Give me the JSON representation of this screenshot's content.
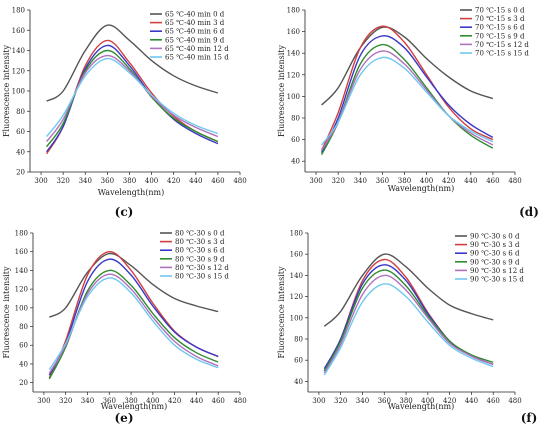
{
  "chart_data": [
    {
      "type": "line",
      "panel_label": "(c)",
      "xlabel": "Wavelength(nm)",
      "ylabel": "Fluorescence intensity",
      "xlim": [
        290,
        480
      ],
      "ylim": [
        20,
        180
      ],
      "xticks": [
        300,
        320,
        340,
        360,
        380,
        400,
        420,
        440,
        460,
        480
      ],
      "yticks": [
        20,
        40,
        60,
        80,
        100,
        120,
        140,
        160,
        180
      ],
      "legend_position": "top-right",
      "series": [
        {
          "name": "65 ℃-40 min 0 d",
          "color": "#555555",
          "x": [
            305,
            320,
            340,
            360,
            380,
            400,
            420,
            440,
            460
          ],
          "y": [
            90,
            100,
            140,
            165,
            150,
            130,
            115,
            105,
            98
          ]
        },
        {
          "name": "65 ℃-40 min 3 d",
          "color": "#d04040",
          "x": [
            305,
            320,
            340,
            360,
            380,
            400,
            420,
            440,
            460
          ],
          "y": [
            38,
            65,
            125,
            150,
            128,
            98,
            75,
            60,
            50
          ]
        },
        {
          "name": "65 ℃-40 min 6 d",
          "color": "#3838c8",
          "x": [
            305,
            320,
            340,
            360,
            380,
            400,
            420,
            440,
            460
          ],
          "y": [
            40,
            65,
            122,
            145,
            125,
            95,
            72,
            58,
            48
          ]
        },
        {
          "name": "65 ℃-40 min 9 d",
          "color": "#2e8b2e",
          "x": [
            305,
            320,
            340,
            360,
            380,
            400,
            420,
            440,
            460
          ],
          "y": [
            45,
            68,
            120,
            140,
            122,
            94,
            73,
            60,
            50
          ]
        },
        {
          "name": "65 ℃-40 min 12 d",
          "color": "#b070c0",
          "x": [
            305,
            320,
            340,
            360,
            380,
            400,
            420,
            440,
            460
          ],
          "y": [
            50,
            72,
            118,
            135,
            120,
            95,
            76,
            64,
            55
          ]
        },
        {
          "name": "65 ℃-40 min 15 d",
          "color": "#70c8f0",
          "x": [
            305,
            320,
            340,
            360,
            380,
            400,
            420,
            440,
            460
          ],
          "y": [
            55,
            76,
            115,
            132,
            118,
            96,
            78,
            66,
            58
          ]
        }
      ]
    },
    {
      "type": "line",
      "panel_label": "(d)",
      "xlabel": "Wavelength(nm)",
      "ylabel": "Fluorescence intensity",
      "xlim": [
        290,
        480
      ],
      "ylim": [
        30,
        180
      ],
      "xticks": [
        300,
        320,
        340,
        360,
        380,
        400,
        420,
        440,
        460,
        480
      ],
      "yticks": [
        40,
        60,
        80,
        100,
        120,
        140,
        160,
        180
      ],
      "legend_position": "top-right",
      "series": [
        {
          "name": "70 ℃-15 s 0 d",
          "color": "#555555",
          "x": [
            305,
            320,
            340,
            360,
            380,
            400,
            420,
            440,
            460
          ],
          "y": [
            92,
            108,
            145,
            164,
            155,
            135,
            118,
            105,
            98
          ]
        },
        {
          "name": "70 ℃-15 s 3 d",
          "color": "#d04040",
          "x": [
            305,
            320,
            340,
            360,
            380,
            400,
            420,
            440,
            460
          ],
          "y": [
            50,
            85,
            145,
            165,
            150,
            120,
            90,
            70,
            60
          ]
        },
        {
          "name": "70 ℃-15 s 6 d",
          "color": "#3838c8",
          "x": [
            305,
            320,
            340,
            360,
            380,
            400,
            420,
            440,
            460
          ],
          "y": [
            48,
            80,
            138,
            156,
            145,
            118,
            92,
            74,
            62
          ]
        },
        {
          "name": "70 ℃-15 s 9 d",
          "color": "#2e8b2e",
          "x": [
            305,
            320,
            340,
            360,
            380,
            400,
            420,
            440,
            460
          ],
          "y": [
            46,
            76,
            130,
            148,
            134,
            108,
            82,
            64,
            52
          ]
        },
        {
          "name": "70 ℃-15 s 12 d",
          "color": "#b070c0",
          "x": [
            305,
            320,
            340,
            360,
            380,
            400,
            420,
            440,
            460
          ],
          "y": [
            50,
            76,
            125,
            142,
            130,
            106,
            82,
            66,
            55
          ]
        },
        {
          "name": "70 ℃-15 s 15 d",
          "color": "#70c8f0",
          "x": [
            305,
            320,
            340,
            360,
            380,
            400,
            420,
            440,
            460
          ],
          "y": [
            55,
            76,
            120,
            136,
            126,
            104,
            82,
            68,
            58
          ]
        }
      ]
    },
    {
      "type": "line",
      "panel_label": "(e)",
      "xlabel": "Wavelength(nm)",
      "ylabel": "Fluorescence intensity",
      "xlim": [
        290,
        480
      ],
      "ylim": [
        10,
        180
      ],
      "xticks": [
        300,
        320,
        340,
        360,
        380,
        400,
        420,
        440,
        460,
        480
      ],
      "yticks": [
        20,
        40,
        60,
        80,
        100,
        120,
        140,
        160,
        180
      ],
      "legend_position": "top-right",
      "series": [
        {
          "name": "80 ℃-30 s 0 d",
          "color": "#555555",
          "x": [
            305,
            320,
            340,
            360,
            380,
            400,
            420,
            440,
            460
          ],
          "y": [
            90,
            100,
            138,
            158,
            145,
            125,
            110,
            102,
            96
          ]
        },
        {
          "name": "80 ℃-30 s 3 d",
          "color": "#d04040",
          "x": [
            305,
            320,
            340,
            360,
            380,
            400,
            420,
            440,
            460
          ],
          "y": [
            25,
            65,
            135,
            160,
            140,
            105,
            75,
            58,
            48
          ]
        },
        {
          "name": "80 ℃-30 s 6 d",
          "color": "#3838c8",
          "x": [
            305,
            320,
            340,
            360,
            380,
            400,
            420,
            440,
            460
          ],
          "y": [
            28,
            62,
            128,
            152,
            135,
            102,
            74,
            58,
            48
          ]
        },
        {
          "name": "80 ℃-30 s 9 d",
          "color": "#2e8b2e",
          "x": [
            305,
            320,
            340,
            360,
            380,
            400,
            420,
            440,
            460
          ],
          "y": [
            24,
            58,
            118,
            140,
            124,
            94,
            68,
            52,
            42
          ]
        },
        {
          "name": "80 ℃-30 s 12 d",
          "color": "#b070c0",
          "x": [
            305,
            320,
            340,
            360,
            380,
            400,
            420,
            440,
            460
          ],
          "y": [
            30,
            60,
            115,
            136,
            120,
            90,
            64,
            48,
            38
          ]
        },
        {
          "name": "80 ℃-30 s 15 d",
          "color": "#70c8f0",
          "x": [
            305,
            320,
            340,
            360,
            380,
            400,
            420,
            440,
            460
          ],
          "y": [
            34,
            62,
            112,
            132,
            116,
            86,
            60,
            45,
            36
          ]
        }
      ]
    },
    {
      "type": "line",
      "panel_label": "(f)",
      "xlabel": "Wavelength(nm)",
      "ylabel": "Fluorescence intensity",
      "xlim": [
        290,
        480
      ],
      "ylim": [
        30,
        180
      ],
      "xticks": [
        300,
        320,
        340,
        360,
        380,
        400,
        420,
        440,
        460,
        480
      ],
      "yticks": [
        40,
        60,
        80,
        100,
        120,
        140,
        160,
        180
      ],
      "legend_position": "top-right",
      "series": [
        {
          "name": "90 ℃-30 s 0 d",
          "color": "#555555",
          "x": [
            305,
            320,
            340,
            360,
            380,
            400,
            420,
            440,
            460
          ],
          "y": [
            92,
            106,
            140,
            160,
            148,
            128,
            112,
            104,
            98
          ]
        },
        {
          "name": "90 ℃-30 s 3 d",
          "color": "#d04040",
          "x": [
            305,
            320,
            340,
            360,
            380,
            400,
            420,
            440,
            460
          ],
          "y": [
            50,
            80,
            135,
            155,
            138,
            105,
            78,
            64,
            56
          ]
        },
        {
          "name": "90 ℃-30 s 6 d",
          "color": "#3838c8",
          "x": [
            305,
            320,
            340,
            360,
            380,
            400,
            420,
            440,
            460
          ],
          "y": [
            52,
            80,
            132,
            150,
            135,
            104,
            78,
            64,
            56
          ]
        },
        {
          "name": "90 ℃-30 s 9 d",
          "color": "#2e8b2e",
          "x": [
            305,
            320,
            340,
            360,
            380,
            400,
            420,
            440,
            460
          ],
          "y": [
            50,
            78,
            128,
            145,
            130,
            102,
            78,
            65,
            58
          ]
        },
        {
          "name": "90 ℃-30 s 12 d",
          "color": "#b070c0",
          "x": [
            305,
            320,
            340,
            360,
            380,
            400,
            420,
            440,
            460
          ],
          "y": [
            48,
            75,
            122,
            140,
            126,
            100,
            76,
            64,
            56
          ]
        },
        {
          "name": "90 ℃-30 s 15 d",
          "color": "#70c8f0",
          "x": [
            305,
            320,
            340,
            360,
            380,
            400,
            420,
            440,
            460
          ],
          "y": [
            46,
            72,
            115,
            132,
            120,
            96,
            74,
            62,
            54
          ]
        }
      ]
    }
  ]
}
